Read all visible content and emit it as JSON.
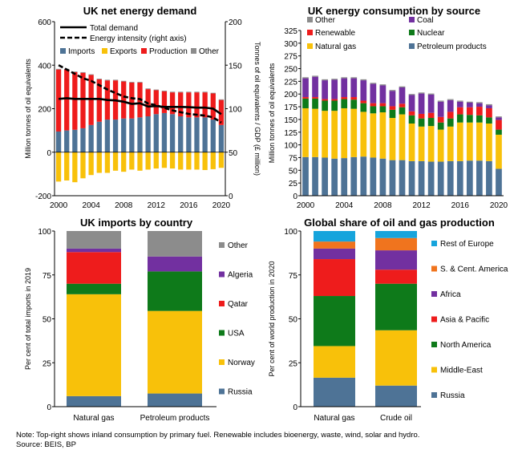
{
  "footnote": {
    "note": "Note: Top-right shows inland consumption by primary fuel. Renewable includes bioenergy, waste, wind, solar and hydro.",
    "source": "Source: BEIS, BP"
  },
  "colors": {
    "imports": "#4e7396",
    "exports": "#f8c10a",
    "production": "#ee1c1c",
    "other": "#8c8c8c",
    "coal": "#7230a0",
    "renewable": "#ee1c1c",
    "nuclear": "#0e7a1a",
    "gas": "#f8c10a",
    "petroleum": "#4e7396",
    "algeria": "#7230a0",
    "qatar": "#ee1c1c",
    "usa": "#0e7a1a",
    "norway": "#f8c10a",
    "russia": "#4e7396",
    "rest_europe": "#16a4dc",
    "sc_america": "#f0741e",
    "africa": "#7230a0",
    "asia_pacific": "#ee1c1c",
    "north_america": "#0e7a1a",
    "middle_east": "#f8c10a"
  },
  "chart_data": [
    {
      "id": "demand",
      "type": "bar",
      "title": "UK net energy demand",
      "ylabel": "Million tonnes of oil equivalents",
      "y2label": "Tonnes of oil equivalents / GDP (£ million)",
      "ylim": [
        -200,
        600
      ],
      "y2lim": [
        0,
        200
      ],
      "yticks": [
        -200,
        0,
        200,
        400,
        600
      ],
      "y2ticks": [
        0,
        50,
        100,
        150,
        200
      ],
      "x": [
        2000,
        2001,
        2002,
        2003,
        2004,
        2005,
        2006,
        2007,
        2008,
        2009,
        2010,
        2011,
        2012,
        2013,
        2014,
        2015,
        2016,
        2017,
        2018,
        2019,
        2020
      ],
      "xticks": [
        "2000",
        "2004",
        "2008",
        "2012",
        "2016",
        "2020"
      ],
      "series": [
        {
          "name": "Imports",
          "values": [
            95,
            100,
            103,
            110,
            125,
            140,
            150,
            150,
            155,
            155,
            160,
            165,
            175,
            180,
            175,
            165,
            160,
            160,
            160,
            150,
            125
          ]
        },
        {
          "name": "Production",
          "values": [
            285,
            280,
            265,
            255,
            230,
            195,
            180,
            180,
            170,
            165,
            160,
            125,
            110,
            100,
            100,
            110,
            115,
            115,
            115,
            120,
            115
          ]
        },
        {
          "name": "Other",
          "values": [
            3,
            3,
            3,
            3,
            3,
            3,
            3,
            3,
            3,
            3,
            3,
            3,
            3,
            3,
            3,
            3,
            3,
            3,
            3,
            3,
            3
          ]
        },
        {
          "name": "Exports",
          "values": [
            -135,
            -130,
            -138,
            -120,
            -105,
            -95,
            -95,
            -85,
            -90,
            -80,
            -85,
            -80,
            -75,
            -72,
            -75,
            -80,
            -80,
            -80,
            -82,
            -78,
            -72
          ]
        },
        {
          "name": "Total demand",
          "axis": "left",
          "values": [
            245,
            248,
            245,
            245,
            245,
            245,
            240,
            238,
            232,
            222,
            225,
            210,
            212,
            208,
            208,
            208,
            207,
            205,
            205,
            200,
            175
          ]
        },
        {
          "name": "Energy intensity (right axis)",
          "axis": "right",
          "values": [
            150,
            145,
            140,
            135,
            132,
            127,
            122,
            118,
            114,
            112,
            111,
            106,
            104,
            101,
            98,
            96,
            94,
            93,
            92,
            90,
            84
          ]
        }
      ],
      "legend": [
        "Total demand",
        "Energy intensity (right axis)",
        "Imports",
        "Exports",
        "Production",
        "Other"
      ]
    },
    {
      "id": "consumption",
      "type": "bar",
      "title": "UK energy consumption by source",
      "ylabel": "Million tonnes of oil equivalents",
      "ylim": [
        0,
        325
      ],
      "yticks": [
        0,
        25,
        50,
        75,
        100,
        125,
        150,
        175,
        200,
        225,
        250,
        275,
        300,
        325
      ],
      "x": [
        2000,
        2001,
        2002,
        2003,
        2004,
        2005,
        2006,
        2007,
        2008,
        2009,
        2010,
        2011,
        2012,
        2013,
        2014,
        2015,
        2016,
        2017,
        2018,
        2019,
        2020
      ],
      "xticks": [
        "2000",
        "2004",
        "2008",
        "2012",
        "2016",
        "2020"
      ],
      "series": [
        {
          "name": "Petroleum products",
          "values": [
            76,
            76,
            75,
            73,
            74,
            76,
            77,
            75,
            73,
            70,
            70,
            68,
            68,
            67,
            67,
            68,
            68,
            69,
            69,
            68,
            53
          ]
        },
        {
          "name": "Natural gas",
          "values": [
            96,
            95,
            92,
            94,
            98,
            95,
            88,
            87,
            91,
            83,
            90,
            74,
            68,
            70,
            63,
            68,
            76,
            75,
            75,
            74,
            67
          ]
        },
        {
          "name": "Nuclear",
          "values": [
            19,
            20,
            20,
            20,
            18,
            18,
            17,
            14,
            12,
            16,
            14,
            16,
            16,
            16,
            14,
            16,
            16,
            15,
            14,
            12,
            10
          ]
        },
        {
          "name": "Renewable",
          "values": [
            3,
            3,
            3,
            3,
            4,
            5,
            5,
            6,
            6,
            7,
            7,
            8,
            9,
            10,
            11,
            13,
            14,
            15,
            17,
            18,
            19
          ]
        },
        {
          "name": "Coal",
          "values": [
            37,
            40,
            37,
            38,
            37,
            37,
            40,
            38,
            35,
            30,
            32,
            32,
            40,
            36,
            30,
            23,
            11,
            9,
            7,
            6,
            5
          ]
        },
        {
          "name": "Other",
          "values": [
            2,
            2,
            2,
            2,
            2,
            2,
            2,
            2,
            2,
            2,
            2,
            2,
            2,
            2,
            2,
            2,
            2,
            2,
            2,
            2,
            2
          ]
        }
      ],
      "legend": [
        "Other",
        "Coal",
        "Renewable",
        "Nuclear",
        "Natural gas",
        "Petroleum products"
      ]
    },
    {
      "id": "imports",
      "type": "bar",
      "title": "UK imports by country",
      "ylabel": "Per cent of total imports in 2019",
      "ylim": [
        0,
        100
      ],
      "yticks": [
        0,
        25,
        50,
        75,
        100
      ],
      "categories": [
        "Natural gas",
        "Petroleum products"
      ],
      "series": [
        {
          "name": "Russia",
          "values": [
            6,
            7.5
          ]
        },
        {
          "name": "Norway",
          "values": [
            58,
            47
          ]
        },
        {
          "name": "USA",
          "values": [
            6,
            22.5
          ]
        },
        {
          "name": "Qatar",
          "values": [
            18,
            0
          ]
        },
        {
          "name": "Algeria",
          "values": [
            2,
            8.5
          ]
        },
        {
          "name": "Other",
          "values": [
            10,
            14.5
          ]
        }
      ],
      "legend": [
        "Other",
        "Algeria",
        "Qatar",
        "USA",
        "Norway",
        "Russia"
      ]
    },
    {
      "id": "global",
      "type": "bar",
      "title": "Global share of oil and gas production",
      "ylabel": "Per cent of world production in 2020",
      "ylim": [
        0,
        100
      ],
      "yticks": [
        0,
        25,
        50,
        75,
        100
      ],
      "categories": [
        "Natural gas",
        "Crude oil"
      ],
      "series": [
        {
          "name": "Russia",
          "values": [
            16.5,
            12
          ]
        },
        {
          "name": "Middle-East",
          "values": [
            18,
            31.5
          ]
        },
        {
          "name": "North America",
          "values": [
            28.5,
            26.5
          ]
        },
        {
          "name": "Asia & Pacific",
          "values": [
            21,
            8
          ]
        },
        {
          "name": "Africa",
          "values": [
            6,
            11
          ]
        },
        {
          "name": "S. & Cent. America",
          "values": [
            4,
            7
          ]
        },
        {
          "name": "Rest of Europe",
          "values": [
            6,
            4
          ]
        }
      ],
      "legend": [
        "Rest of Europe",
        "S. & Cent. America",
        "Africa",
        "Asia & Pacific",
        "North America",
        "Middle-East",
        "Russia"
      ]
    }
  ]
}
